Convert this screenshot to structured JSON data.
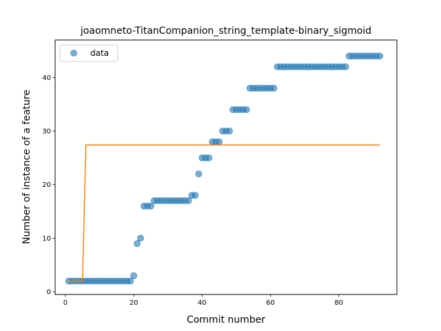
{
  "chart_data": {
    "type": "scatter",
    "title": "joaomneto-TitanCompanion_string_template-binary_sigmoid",
    "xlabel": "Commit number",
    "ylabel": "Number of instance of a feature",
    "xlim": [
      -3,
      97
    ],
    "ylim": [
      -0.5,
      47
    ],
    "xticks": [
      0,
      20,
      40,
      60,
      80
    ],
    "yticks": [
      0,
      10,
      20,
      30,
      40
    ],
    "legend": {
      "placement": "top-left",
      "entries": [
        "data"
      ]
    },
    "grid": false,
    "colors": {
      "data": "#1f77b4",
      "fit": "#ff7f0e"
    },
    "series": [
      {
        "name": "data",
        "kind": "scatter",
        "x": [
          1,
          2,
          3,
          4,
          5,
          6,
          7,
          8,
          9,
          10,
          11,
          12,
          13,
          14,
          15,
          16,
          17,
          18,
          19,
          20,
          21,
          22,
          23,
          24,
          25,
          26,
          27,
          28,
          29,
          30,
          31,
          32,
          33,
          34,
          35,
          36,
          37,
          38,
          39,
          40,
          41,
          42,
          43,
          44,
          45,
          46,
          47,
          48,
          49,
          50,
          51,
          52,
          53,
          54,
          55,
          56,
          57,
          58,
          59,
          60,
          61,
          62,
          63,
          64,
          65,
          66,
          67,
          68,
          69,
          70,
          71,
          72,
          73,
          74,
          75,
          76,
          77,
          78,
          79,
          80,
          81,
          82,
          83,
          84,
          85,
          86,
          87,
          88,
          89,
          90,
          91,
          92
        ],
        "y": [
          2,
          2,
          2,
          2,
          2,
          2,
          2,
          2,
          2,
          2,
          2,
          2,
          2,
          2,
          2,
          2,
          2,
          2,
          2,
          3,
          9,
          10,
          16,
          16,
          16,
          17,
          17,
          17,
          17,
          17,
          17,
          17,
          17,
          17,
          17,
          17,
          18,
          18,
          22,
          25,
          25,
          25,
          28,
          28,
          28,
          30,
          30,
          30,
          34,
          34,
          34,
          34,
          34,
          38,
          38,
          38,
          38,
          38,
          38,
          38,
          38,
          42,
          42,
          42,
          42,
          42,
          42,
          42,
          42,
          42,
          42,
          42,
          42,
          42,
          42,
          42,
          42,
          42,
          42,
          42,
          42,
          42,
          44,
          44,
          44,
          44,
          44,
          44,
          44,
          44,
          44,
          44
        ]
      },
      {
        "kind": "line",
        "x": [
          1,
          5,
          6,
          92
        ],
        "y": [
          2,
          2,
          27.4,
          27.4
        ]
      }
    ]
  }
}
